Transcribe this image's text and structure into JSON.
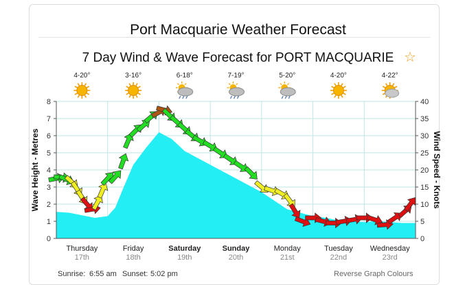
{
  "page_title": "Port Macquarie Weather Forecast",
  "forecast_title": "7 Day Wind & Wave Forecast for PORT MACQUARIE",
  "favorite_icon": "star-outline-icon",
  "footer": {
    "sunrise_label": "Sunrise:",
    "sunrise": "6:55 am",
    "sunset_label": "Sunset:",
    "sunset": "5:02 pm",
    "reverse_colours": "Reverse Graph Colours"
  },
  "colors": {
    "wave_fill": "#22eef4",
    "grid": "#bfe6e6",
    "wind_light": "#22dd22",
    "wind_moderate": "#eeee22",
    "wind_strong": "#dd1111",
    "wind_extreme": "#aa5511"
  },
  "chart_data": {
    "type": "area",
    "title": "7 Day Wind & Wave Forecast for PORT MACQUARIE",
    "ylabel": "Wave Height - Metres",
    "ylabel_right": "Wind Speed - Knots",
    "ylim": [
      0,
      8
    ],
    "ylim_right": [
      0,
      40
    ],
    "yticks": [
      "0",
      "1",
      "2",
      "3",
      "4",
      "5",
      "6",
      "7",
      "8"
    ],
    "yticks_right": [
      "0",
      "5",
      "10",
      "15",
      "20",
      "25",
      "30",
      "35",
      "40"
    ],
    "days": [
      {
        "name": "Thursday",
        "date": "17th",
        "bold": false,
        "temp": "4-20°",
        "icon": "sun-icon"
      },
      {
        "name": "Friday",
        "date": "18th",
        "bold": false,
        "temp": "3-16°",
        "icon": "sun-icon"
      },
      {
        "name": "Saturday",
        "date": "19th",
        "bold": true,
        "temp": "6-18°",
        "icon": "cloud-rain-icon"
      },
      {
        "name": "Sunday",
        "date": "20th",
        "bold": true,
        "temp": "7-19°",
        "icon": "cloud-rain-icon"
      },
      {
        "name": "Monday",
        "date": "21st",
        "bold": false,
        "temp": "5-20°",
        "icon": "cloud-rain-icon"
      },
      {
        "name": "Tuesday",
        "date": "22nd",
        "bold": false,
        "temp": "4-20°",
        "icon": "sun-icon"
      },
      {
        "name": "Wednesday",
        "date": "23rd",
        "bold": false,
        "temp": "4-22°",
        "icon": "sun-cloud-icon"
      }
    ],
    "wave_height": [
      {
        "day": 0,
        "m": 1.55
      },
      {
        "day": 0.25,
        "m": 1.5
      },
      {
        "day": 0.5,
        "m": 1.35
      },
      {
        "day": 0.75,
        "m": 1.2
      },
      {
        "day": 1.0,
        "m": 1.3
      },
      {
        "day": 1.15,
        "m": 1.8
      },
      {
        "day": 1.3,
        "m": 2.9
      },
      {
        "day": 1.5,
        "m": 4.3
      },
      {
        "day": 1.75,
        "m": 5.3
      },
      {
        "day": 2.0,
        "m": 6.2
      },
      {
        "day": 2.25,
        "m": 5.8
      },
      {
        "day": 2.5,
        "m": 5.1
      },
      {
        "day": 2.75,
        "m": 4.7
      },
      {
        "day": 3.0,
        "m": 4.3
      },
      {
        "day": 3.25,
        "m": 3.9
      },
      {
        "day": 3.5,
        "m": 3.5
      },
      {
        "day": 3.75,
        "m": 3.1
      },
      {
        "day": 4.0,
        "m": 2.7
      },
      {
        "day": 4.25,
        "m": 2.2
      },
      {
        "day": 4.5,
        "m": 1.7
      },
      {
        "day": 4.75,
        "m": 1.5
      },
      {
        "day": 5.0,
        "m": 1.3
      },
      {
        "day": 5.25,
        "m": 1.2
      },
      {
        "day": 5.5,
        "m": 1.05
      },
      {
        "day": 5.75,
        "m": 1.0
      },
      {
        "day": 6.0,
        "m": 0.95
      },
      {
        "day": 6.25,
        "m": 1.0
      },
      {
        "day": 6.5,
        "m": 0.95
      },
      {
        "day": 6.75,
        "m": 0.9
      },
      {
        "day": 7.0,
        "m": 0.9
      }
    ],
    "wind_speed": [
      {
        "day": 0.0,
        "kn": 17.5,
        "level": "light"
      },
      {
        "day": 0.1,
        "kn": 17.8,
        "level": "light"
      },
      {
        "day": 0.2,
        "kn": 17.2,
        "level": "light"
      },
      {
        "day": 0.3,
        "kn": 16.5,
        "level": "moderate"
      },
      {
        "day": 0.4,
        "kn": 14.5,
        "level": "moderate"
      },
      {
        "day": 0.5,
        "kn": 12.0,
        "level": "moderate"
      },
      {
        "day": 0.6,
        "kn": 10.0,
        "level": "strong"
      },
      {
        "day": 0.7,
        "kn": 8.5,
        "level": "strong"
      },
      {
        "day": 0.8,
        "kn": 10.5,
        "level": "moderate"
      },
      {
        "day": 0.9,
        "kn": 14.0,
        "level": "moderate"
      },
      {
        "day": 1.0,
        "kn": 17.5,
        "level": "light"
      },
      {
        "day": 1.15,
        "kn": 18.0,
        "level": "light"
      },
      {
        "day": 1.3,
        "kn": 22.5,
        "level": "light"
      },
      {
        "day": 1.4,
        "kn": 28.5,
        "level": "light"
      },
      {
        "day": 1.55,
        "kn": 31.5,
        "level": "light"
      },
      {
        "day": 1.7,
        "kn": 33.0,
        "level": "light"
      },
      {
        "day": 1.85,
        "kn": 35.5,
        "level": "light"
      },
      {
        "day": 2.0,
        "kn": 36.8,
        "level": "extreme"
      },
      {
        "day": 2.1,
        "kn": 37.5,
        "level": "extreme"
      },
      {
        "day": 2.2,
        "kn": 36.0,
        "level": "light"
      },
      {
        "day": 2.35,
        "kn": 34.0,
        "level": "light"
      },
      {
        "day": 2.5,
        "kn": 32.0,
        "level": "light"
      },
      {
        "day": 2.65,
        "kn": 30.0,
        "level": "light"
      },
      {
        "day": 2.8,
        "kn": 28.5,
        "level": "light"
      },
      {
        "day": 3.0,
        "kn": 27.0,
        "level": "light"
      },
      {
        "day": 3.2,
        "kn": 25.0,
        "level": "light"
      },
      {
        "day": 3.4,
        "kn": 23.0,
        "level": "light"
      },
      {
        "day": 3.6,
        "kn": 21.0,
        "level": "light"
      },
      {
        "day": 3.8,
        "kn": 19.0,
        "level": "light"
      },
      {
        "day": 4.0,
        "kn": 15.0,
        "level": "moderate"
      },
      {
        "day": 4.2,
        "kn": 14.0,
        "level": "moderate"
      },
      {
        "day": 4.4,
        "kn": 13.0,
        "level": "moderate"
      },
      {
        "day": 4.55,
        "kn": 11.0,
        "level": "moderate"
      },
      {
        "day": 4.65,
        "kn": 8.0,
        "level": "strong"
      },
      {
        "day": 4.8,
        "kn": 5.0,
        "level": "strong"
      },
      {
        "day": 5.0,
        "kn": 6.0,
        "level": "strong"
      },
      {
        "day": 5.2,
        "kn": 5.0,
        "level": "strong"
      },
      {
        "day": 5.4,
        "kn": 4.5,
        "level": "strong"
      },
      {
        "day": 5.6,
        "kn": 5.0,
        "level": "strong"
      },
      {
        "day": 5.8,
        "kn": 5.5,
        "level": "strong"
      },
      {
        "day": 6.0,
        "kn": 6.0,
        "level": "strong"
      },
      {
        "day": 6.2,
        "kn": 5.5,
        "level": "strong"
      },
      {
        "day": 6.4,
        "kn": 4.0,
        "level": "strong"
      },
      {
        "day": 6.6,
        "kn": 6.0,
        "level": "strong"
      },
      {
        "day": 6.8,
        "kn": 8.0,
        "level": "strong"
      },
      {
        "day": 6.9,
        "kn": 10.0,
        "level": "strong"
      }
    ]
  }
}
